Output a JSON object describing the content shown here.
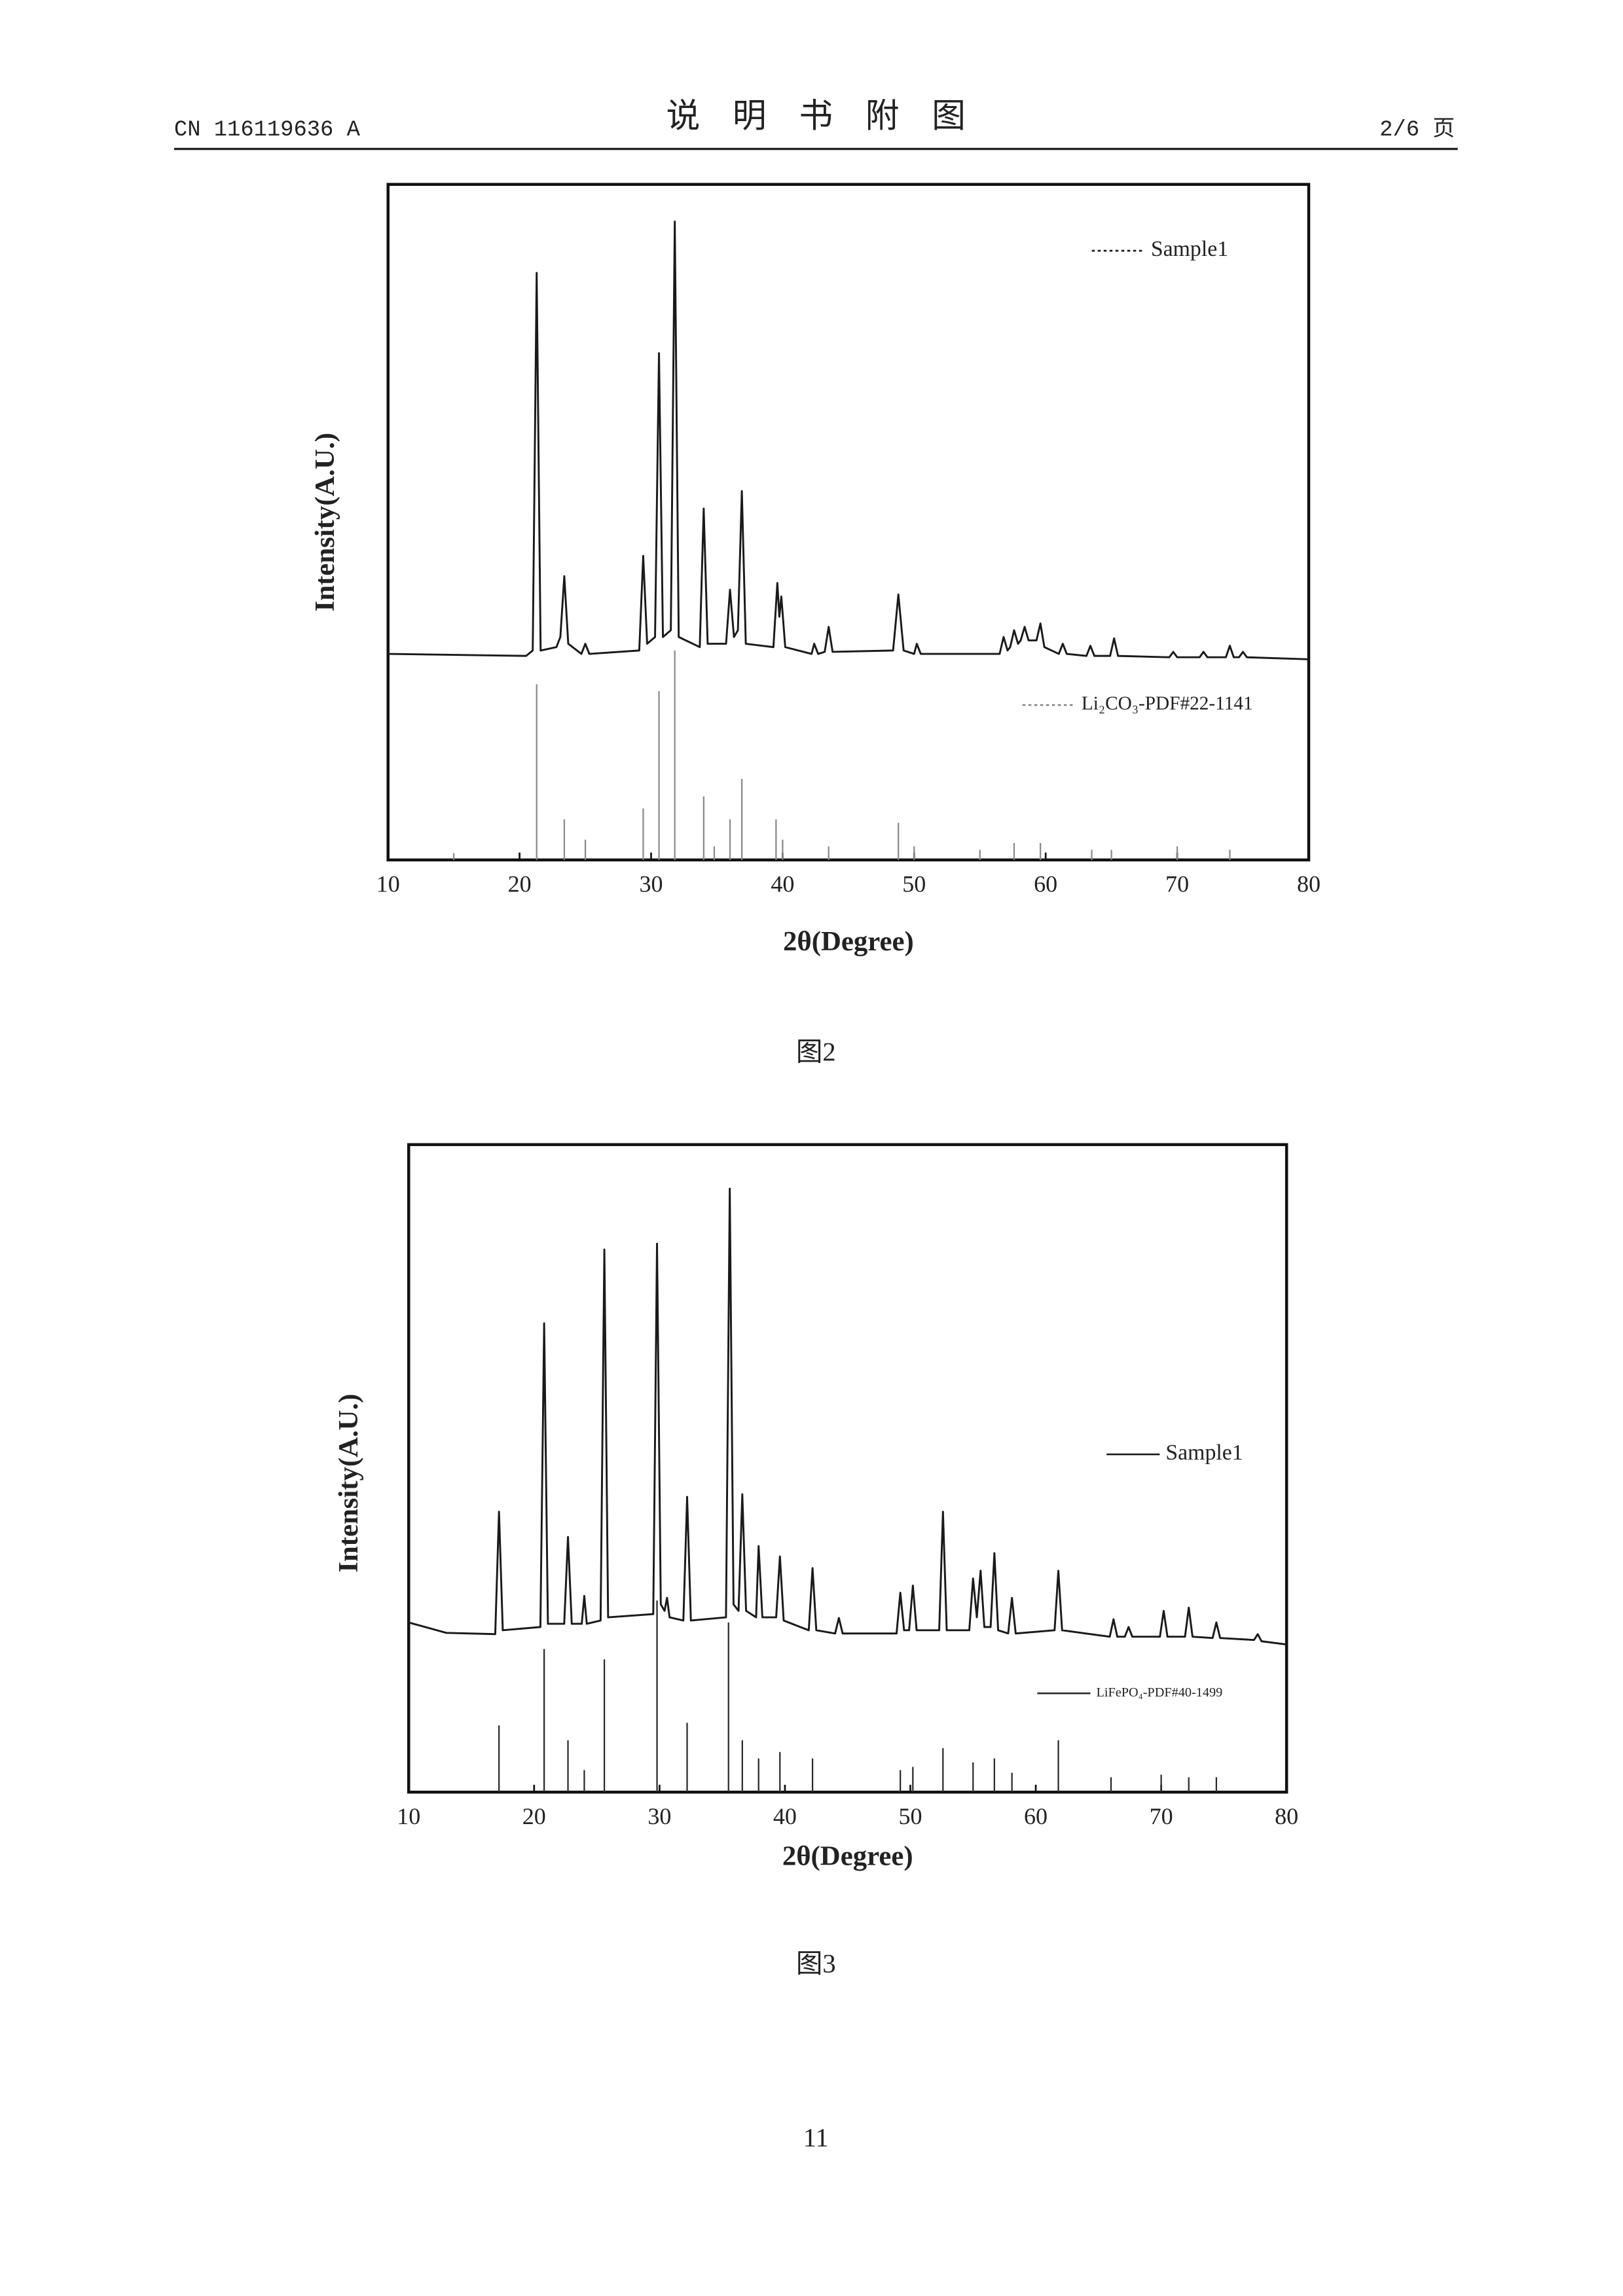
{
  "header": {
    "left": "CN 116119636 A",
    "title": "说明书附图",
    "right": "2/6 页"
  },
  "chart_data": [
    {
      "type": "line",
      "xlabel": "2θ(Degree)",
      "ylabel": "Intensity(A.U.)",
      "xlim": [
        10,
        80
      ],
      "xticks": [
        10,
        20,
        30,
        40,
        50,
        60,
        70,
        80
      ],
      "ylim": [
        0,
        100
      ],
      "grid": false,
      "series": [
        {
          "name": "Sample1",
          "type": "line",
          "color": "#1a1a1a",
          "x": [
            10,
            20.5,
            21.0,
            21.3,
            21.6,
            22.8,
            23.1,
            23.4,
            23.7,
            24.7,
            25.0,
            25.3,
            29.1,
            29.4,
            29.7,
            30.3,
            30.6,
            30.9,
            31.5,
            31.8,
            32.1,
            33.7,
            34.0,
            34.3,
            35.7,
            36.0,
            36.3,
            36.6,
            36.9,
            37.2,
            39.3,
            39.6,
            39.75,
            39.9,
            40.2,
            42.2,
            42.4,
            42.7,
            43.2,
            43.5,
            43.8,
            48.4,
            48.8,
            49.2,
            50.0,
            50.2,
            50.5,
            56.5,
            56.8,
            57.1,
            57.3,
            57.6,
            57.9,
            58.1,
            58.4,
            58.7,
            59.3,
            59.6,
            59.9,
            61.0,
            61.3,
            61.6,
            63.1,
            63.4,
            63.7,
            64.9,
            65.2,
            65.5,
            69.4,
            69.7,
            70.0,
            71.7,
            72.0,
            72.3,
            73.7,
            74.0,
            74.3,
            74.7,
            75.0,
            75.3,
            80
          ],
          "values": [
            30.5,
            30.2,
            31,
            86.9,
            31,
            31.5,
            33,
            42,
            32,
            30.5,
            32,
            30.5,
            31,
            45,
            32,
            33,
            75,
            33,
            34,
            94.5,
            33,
            31.5,
            52,
            32,
            32,
            40,
            33,
            34,
            54.6,
            32,
            31.5,
            41,
            36,
            39,
            31.5,
            30.5,
            32,
            30.5,
            30.8,
            34.5,
            30.8,
            31,
            39.3,
            31,
            30.5,
            32,
            30.5,
            30.5,
            33,
            31,
            31.5,
            34,
            32,
            32.5,
            34.5,
            32.5,
            32.5,
            35,
            31.5,
            30.5,
            32,
            30.5,
            30.2,
            31.7,
            30.2,
            30.2,
            32.8,
            30.2,
            30,
            30.8,
            30,
            30,
            30.8,
            30,
            30,
            31.7,
            30,
            30,
            30.8,
            30,
            29.7
          ]
        },
        {
          "name": "Li₂CO₃-PDF#22-1141",
          "type": "stem",
          "color": "#8a8a8a",
          "x": [
            15,
            21.3,
            23.4,
            25.0,
            29.4,
            30.6,
            31.8,
            34.0,
            34.8,
            36.0,
            36.9,
            39.5,
            40.0,
            43.5,
            48.8,
            50.0,
            55.0,
            57.6,
            59.6,
            63.5,
            65.0,
            70.0,
            74.0
          ],
          "values": [
            1,
            26,
            6,
            3,
            7.6,
            25,
            31,
            9.4,
            2,
            6,
            12,
            6,
            3,
            2,
            5.5,
            2,
            1.5,
            2.5,
            2.5,
            1.5,
            1.5,
            2,
            1.5
          ]
        }
      ]
    },
    {
      "type": "line",
      "xlabel": "2θ(Degree)",
      "ylabel": "Intensity(A.U.)",
      "xlim": [
        10,
        80
      ],
      "xticks": [
        10,
        20,
        30,
        40,
        50,
        60,
        70,
        80
      ],
      "ylim": [
        0,
        100
      ],
      "grid": false,
      "series": [
        {
          "name": "Sample1",
          "type": "line",
          "color": "#1a1a1a",
          "x": [
            10,
            13,
            16.9,
            17.2,
            17.5,
            20.5,
            20.8,
            21.1,
            22.4,
            22.7,
            23.0,
            23.8,
            24.0,
            24.2,
            25.3,
            25.6,
            25.9,
            29.5,
            29.8,
            30.1,
            30.4,
            30.6,
            30.8,
            31.9,
            32.2,
            32.5,
            35.3,
            35.6,
            35.9,
            36.3,
            36.6,
            36.9,
            37.7,
            37.9,
            38.2,
            39.3,
            39.6,
            39.9,
            41.9,
            42.2,
            42.5,
            44.0,
            44.3,
            44.6,
            48.9,
            49.2,
            49.5,
            49.9,
            50.2,
            50.5,
            52.3,
            52.6,
            52.9,
            54.7,
            55.0,
            55.3,
            55.6,
            55.9,
            56.4,
            56.7,
            57.0,
            57.8,
            58.1,
            58.4,
            61.5,
            61.8,
            62.1,
            65.9,
            66.2,
            66.5,
            67.1,
            67.4,
            67.7,
            69.9,
            70.2,
            70.5,
            71.9,
            72.2,
            72.5,
            74.1,
            74.4,
            74.7,
            77.4,
            77.7,
            78.0,
            80
          ],
          "values": [
            26.2,
            24.6,
            24.4,
            43.3,
            25,
            25.5,
            72.4,
            26,
            26,
            39.4,
            26,
            26,
            30.3,
            26,
            26.5,
            83.8,
            27,
            27.5,
            84.7,
            29,
            28,
            30,
            27,
            26.5,
            45.6,
            26.5,
            27,
            93.2,
            29,
            28,
            46,
            28,
            27,
            38,
            27,
            27,
            36.4,
            26.5,
            25,
            34.6,
            25,
            24.5,
            26.9,
            24.5,
            24.5,
            30.8,
            25,
            25,
            31.9,
            25,
            25,
            43.3,
            25,
            25,
            33,
            27,
            34.2,
            25.5,
            25.5,
            36.9,
            25,
            24.5,
            30,
            24.5,
            25,
            34.2,
            25,
            24,
            26.7,
            24,
            24,
            25.5,
            24,
            24,
            28,
            24,
            24,
            28.5,
            24,
            23.8,
            26.2,
            23.8,
            23.5,
            24.4,
            23.3,
            22.8
          ]
        },
        {
          "name": "LiFePO₄-PDF#40-1499",
          "type": "stem",
          "color": "#2a2a2a",
          "x": [
            17.2,
            20.8,
            22.7,
            24.0,
            25.6,
            29.8,
            32.2,
            35.5,
            36.6,
            37.9,
            39.6,
            42.2,
            49.2,
            50.2,
            52.6,
            55.0,
            56.7,
            58.1,
            61.8,
            66.0,
            70.0,
            72.2,
            74.4
          ],
          "values": [
            10.3,
            22.1,
            8,
            3.4,
            20.5,
            29.6,
            10.7,
            26.2,
            8,
            5.2,
            6.2,
            5.2,
            3.4,
            3.9,
            6.8,
            4.6,
            5.2,
            3,
            8,
            2.3,
            2.7,
            2.3,
            2.3
          ]
        }
      ]
    }
  ],
  "captions": [
    "图2",
    "图3"
  ],
  "page_number": "11"
}
